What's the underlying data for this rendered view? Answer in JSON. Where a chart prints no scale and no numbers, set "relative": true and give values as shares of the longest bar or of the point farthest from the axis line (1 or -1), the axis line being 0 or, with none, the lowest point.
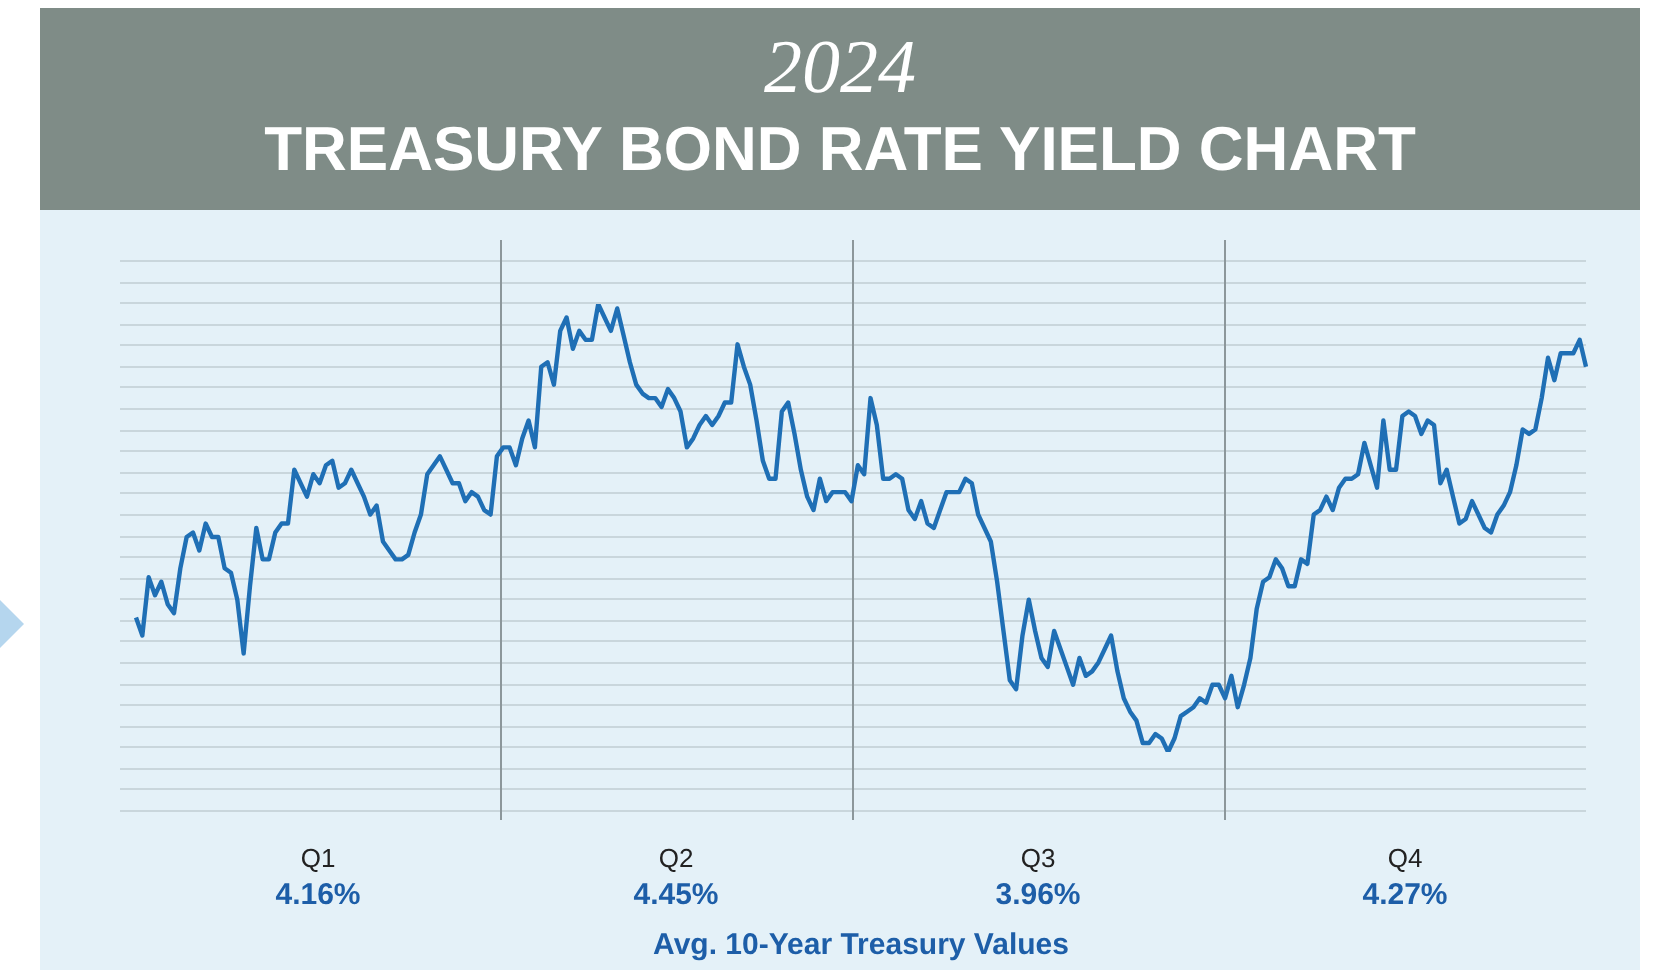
{
  "chart_data": {
    "type": "line",
    "title": "2024",
    "subtitle": "TREASURY BOND RATE YIELD CHART",
    "relative": true,
    "legend": false,
    "line_style": "solid",
    "categories": [
      null,
      null,
      null,
      null,
      null,
      null,
      null,
      null,
      null,
      null,
      null,
      null,
      null,
      null,
      null,
      null,
      null,
      null,
      null,
      null,
      null,
      null,
      null,
      null,
      null,
      null,
      null,
      null,
      null,
      null,
      null,
      null,
      null,
      null,
      null,
      null,
      null,
      null,
      null,
      null,
      null,
      null,
      null,
      null,
      null,
      null,
      null,
      null,
      null,
      null,
      null,
      null,
      null,
      null,
      null,
      null,
      null,
      null,
      null,
      null,
      null,
      null,
      null,
      null,
      null,
      null,
      null,
      null,
      null,
      null,
      null,
      null,
      null,
      null,
      null,
      null,
      null,
      null,
      null,
      null,
      null,
      null,
      null,
      null,
      null,
      null,
      null,
      null,
      null,
      null,
      null,
      null,
      null,
      null,
      null,
      null,
      null,
      null,
      null,
      null,
      null,
      null,
      null,
      null,
      null,
      null,
      null,
      null,
      null,
      null,
      null,
      null,
      null,
      null,
      null,
      null,
      null,
      null,
      null,
      null,
      null,
      null,
      null,
      null,
      null,
      null,
      null,
      null,
      null,
      null,
      null,
      null,
      null,
      null,
      null,
      null,
      null,
      null,
      null,
      null,
      null,
      null,
      null,
      null,
      null,
      null,
      null,
      null,
      null,
      null,
      null,
      null,
      null,
      null,
      null,
      null,
      null,
      null,
      null,
      null,
      null,
      null,
      null,
      null,
      null,
      null,
      null,
      null,
      null,
      null,
      null,
      null,
      null,
      null,
      null,
      null,
      null,
      null,
      null,
      null,
      null,
      null,
      null,
      null,
      null,
      null,
      null,
      null,
      null,
      null,
      null,
      null,
      null,
      null,
      null,
      null,
      null,
      null,
      null,
      null,
      null,
      null,
      null,
      null,
      null,
      null,
      null,
      null,
      null,
      null,
      null,
      null,
      null,
      null,
      null,
      null,
      null,
      null,
      null,
      null,
      null,
      null,
      null,
      null,
      null,
      null,
      null,
      null,
      null,
      null
    ],
    "series": [
      {
        "color": "#1f6fb5",
        "values": [
          0.3,
          0.26,
          0.39,
          0.35,
          0.38,
          0.33,
          0.31,
          0.41,
          0.48,
          0.49,
          0.45,
          0.51,
          0.48,
          0.48,
          0.41,
          0.4,
          0.34,
          0.22,
          0.37,
          0.5,
          0.43,
          0.43,
          0.49,
          0.51,
          0.51,
          0.63,
          0.6,
          0.57,
          0.62,
          0.6,
          0.64,
          0.65,
          0.59,
          0.6,
          0.63,
          0.6,
          0.57,
          0.53,
          0.55,
          0.47,
          0.45,
          0.43,
          0.43,
          0.44,
          0.49,
          0.53,
          0.62,
          0.64,
          0.66,
          0.63,
          0.6,
          0.6,
          0.56,
          0.58,
          0.57,
          0.54,
          0.53,
          0.66,
          0.68,
          0.68,
          0.64,
          0.7,
          0.74,
          0.68,
          0.86,
          0.87,
          0.82,
          0.94,
          0.97,
          0.9,
          0.94,
          0.92,
          0.92,
          1,
          0.97,
          0.94,
          0.99,
          0.93,
          0.87,
          0.82,
          0.8,
          0.79,
          0.79,
          0.77,
          0.81,
          0.79,
          0.76,
          0.68,
          0.7,
          0.73,
          0.75,
          0.73,
          0.75,
          0.78,
          0.78,
          0.91,
          0.86,
          0.82,
          0.74,
          0.65,
          0.61,
          0.61,
          0.76,
          0.78,
          0.71,
          0.63,
          0.57,
          0.54,
          0.61,
          0.56,
          0.58,
          0.58,
          0.58,
          0.56,
          0.64,
          0.62,
          0.79,
          0.73,
          0.61,
          0.61,
          0.62,
          0.61,
          0.54,
          0.52,
          0.56,
          0.51,
          0.5,
          0.54,
          0.58,
          0.58,
          0.58,
          0.61,
          0.6,
          0.53,
          0.5,
          0.47,
          0.38,
          0.27,
          0.16,
          0.14,
          0.26,
          0.34,
          0.27,
          0.21,
          0.19,
          0.27,
          0.23,
          0.19,
          0.15,
          0.21,
          0.17,
          0.18,
          0.2,
          0.23,
          0.26,
          0.18,
          0.12,
          0.09,
          0.07,
          0.02,
          0.02,
          0.04,
          0.03,
          0,
          0.03,
          0.08,
          0.09,
          0.1,
          0.12,
          0.11,
          0.15,
          0.15,
          0.12,
          0.17,
          0.1,
          0.15,
          0.21,
          0.32,
          0.38,
          0.39,
          0.43,
          0.41,
          0.37,
          0.37,
          0.43,
          0.42,
          0.53,
          0.54,
          0.57,
          0.54,
          0.59,
          0.61,
          0.61,
          0.62,
          0.69,
          0.64,
          0.59,
          0.74,
          0.63,
          0.63,
          0.75,
          0.76,
          0.75,
          0.71,
          0.74,
          0.73,
          0.6,
          0.63,
          0.57,
          0.51,
          0.52,
          0.56,
          0.53,
          0.5,
          0.49,
          0.53,
          0.55,
          0.58,
          0.64,
          0.72,
          0.71,
          0.72,
          0.79,
          0.88,
          0.83,
          0.89,
          0.89,
          0.89,
          0.92,
          0.86
        ]
      }
    ],
    "annotations": [
      "Q1",
      "4.16%",
      "Q2",
      "4.45%",
      "Q3",
      "3.96%",
      "Q4",
      "4.27%",
      "Avg. 10-Year Treasury Values"
    ]
  }
}
